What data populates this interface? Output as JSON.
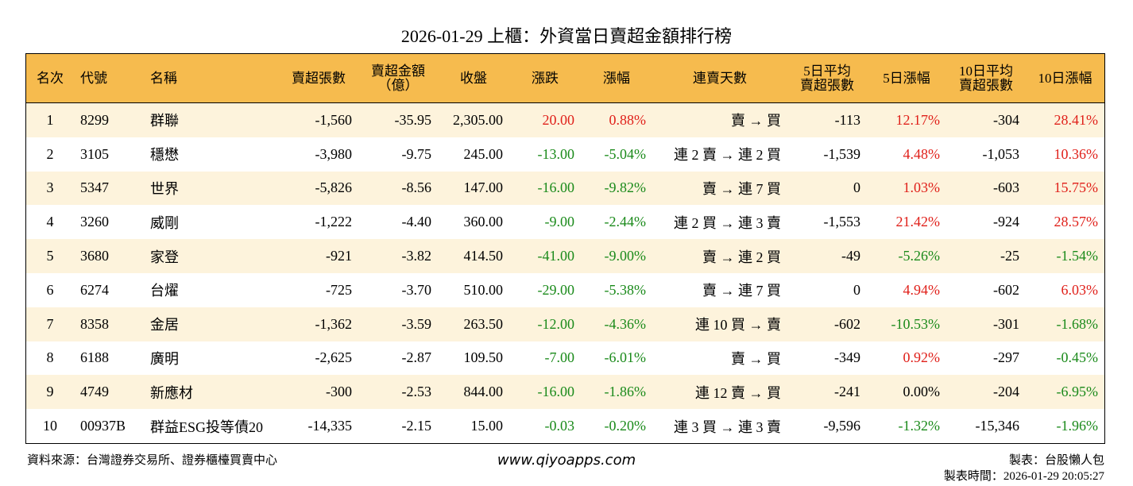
{
  "title": "2026-01-29 上櫃：外資當日賣超金額排行榜",
  "table": {
    "header": [
      "名次",
      "代號",
      "名稱",
      "賣超張數",
      "賣超金額\n（億）",
      "收盤",
      "漲跌",
      "漲幅",
      "連賣天數",
      "5日平均\n賣超張數",
      "5日漲幅",
      "10日平均\n賣超張數",
      "10日漲幅"
    ],
    "rows": [
      [
        "1",
        "8299",
        "群聯",
        "-1,560",
        "-35.95",
        "2,305.00",
        "20.00",
        "0.88%",
        "賣 → 買",
        "-113",
        "12.17%",
        "-304",
        "28.41%"
      ],
      [
        "2",
        "3105",
        "穩懋",
        "-3,980",
        "-9.75",
        "245.00",
        "-13.00",
        "-5.04%",
        "連 2 賣 → 連 2 買",
        "-1,539",
        "4.48%",
        "-1,053",
        "10.36%"
      ],
      [
        "3",
        "5347",
        "世界",
        "-5,826",
        "-8.56",
        "147.00",
        "-16.00",
        "-9.82%",
        "賣 → 連 7 買",
        "0",
        "1.03%",
        "-603",
        "15.75%"
      ],
      [
        "4",
        "3260",
        "威剛",
        "-1,222",
        "-4.40",
        "360.00",
        "-9.00",
        "-2.44%",
        "連 2 買 → 連 3 賣",
        "-1,553",
        "21.42%",
        "-924",
        "28.57%"
      ],
      [
        "5",
        "3680",
        "家登",
        "-921",
        "-3.82",
        "414.50",
        "-41.00",
        "-9.00%",
        "賣 → 連 2 買",
        "-49",
        "-5.26%",
        "-25",
        "-1.54%"
      ],
      [
        "6",
        "6274",
        "台燿",
        "-725",
        "-3.70",
        "510.00",
        "-29.00",
        "-5.38%",
        "賣 → 連 7 買",
        "0",
        "4.94%",
        "-602",
        "6.03%"
      ],
      [
        "7",
        "8358",
        "金居",
        "-1,362",
        "-3.59",
        "263.50",
        "-12.00",
        "-4.36%",
        "連 10 買 → 賣",
        "-602",
        "-10.53%",
        "-301",
        "-1.68%"
      ],
      [
        "8",
        "6188",
        "廣明",
        "-2,625",
        "-2.87",
        "109.50",
        "-7.00",
        "-6.01%",
        "賣 → 買",
        "-349",
        "0.92%",
        "-297",
        "-0.45%"
      ],
      [
        "9",
        "4749",
        "新應材",
        "-300",
        "-2.53",
        "844.00",
        "-16.00",
        "-1.86%",
        "連 12 賣 → 買",
        "-241",
        "0.00%",
        "-204",
        "-6.95%"
      ],
      [
        "10",
        "00937B",
        "群益ESG投等債20",
        "-14,335",
        "-2.15",
        "15.00",
        "-0.03",
        "-0.20%",
        "連 3 買 → 連 3 賣",
        "-9,596",
        "-1.32%",
        "-15,346",
        "-1.96%"
      ]
    ]
  },
  "footer": {
    "source": "資料來源：台灣證券交易所、證券櫃檯買賣中心",
    "url": "www.qiyoapps.com",
    "maker": "製表：台股懶人包",
    "time": "製表時間：2026-01-29 20:05:27"
  }
}
